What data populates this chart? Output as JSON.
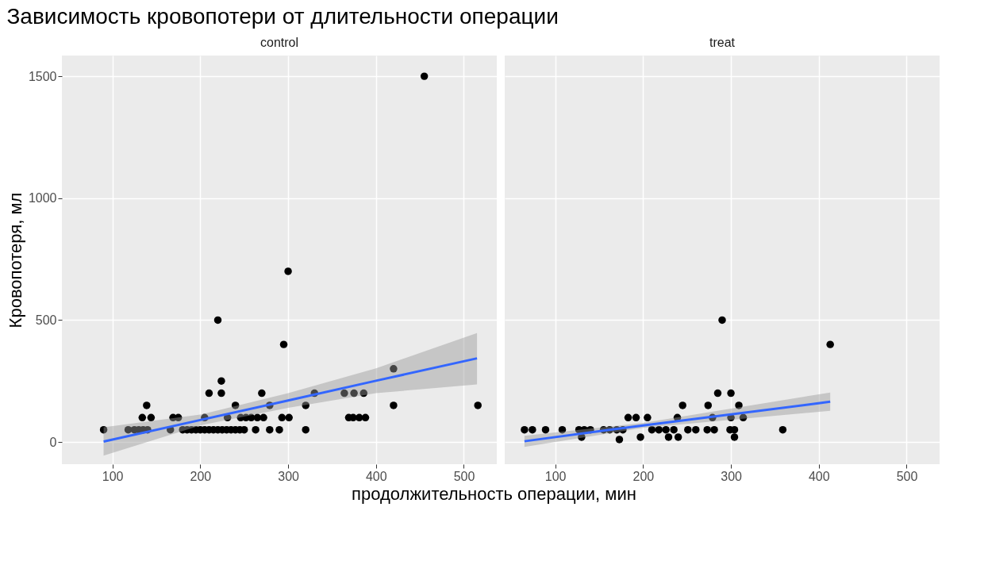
{
  "chart_data": [
    {
      "type": "scatter",
      "title": "Зависимость кровопотери от длительности операции",
      "subtitle": "control",
      "xlabel": "продолжительность операции, мин",
      "ylabel": "Кровопотеря, мл",
      "xlim": [
        42.5,
        537.5
      ],
      "ylim": [
        -91,
        1585
      ],
      "xticks": [
        100,
        200,
        300,
        400,
        500
      ],
      "yticks": [
        0,
        500,
        1000,
        1500
      ],
      "grid": true,
      "series": [
        {
          "type": "scatter",
          "marker": "circle",
          "color": "#000000",
          "x": [
            90,
            118,
            125,
            130,
            135,
            140,
            134,
            144,
            139,
            166,
            169,
            175,
            180,
            185,
            190,
            195,
            200,
            205,
            210,
            215,
            205,
            210,
            220,
            224,
            224,
            220,
            225,
            230,
            235,
            240,
            245,
            250,
            240,
            231,
            246,
            252,
            258,
            265,
            272,
            263,
            270,
            279,
            290,
            279,
            295,
            300,
            293,
            301,
            320,
            320,
            330,
            364,
            369,
            375,
            386,
            374,
            381,
            388,
            420,
            420,
            455,
            516
          ],
          "values": [
            50,
            50,
            50,
            50,
            50,
            50,
            100,
            100,
            150,
            50,
            100,
            100,
            50,
            50,
            50,
            50,
            50,
            100,
            200,
            50,
            50,
            50,
            500,
            250,
            200,
            50,
            50,
            50,
            50,
            50,
            50,
            50,
            150,
            100,
            100,
            100,
            100,
            100,
            100,
            50,
            200,
            50,
            50,
            150,
            400,
            700,
            100,
            100,
            150,
            50,
            200,
            200,
            100,
            200,
            200,
            100,
            100,
            100,
            300,
            150,
            1500,
            150
          ]
        },
        {
          "type": "line",
          "color": "#3366ff",
          "x": [
            90,
            200,
            300,
            400,
            515
          ],
          "values": [
            2,
            90,
            170,
            251,
            343
          ],
          "lower": [
            -56,
            68,
            140,
            200,
            236
          ],
          "upper": [
            60,
            112,
            200,
            302,
            447
          ]
        }
      ]
    },
    {
      "type": "scatter",
      "subtitle": "treat",
      "xlim": [
        42.5,
        537.5
      ],
      "ylim": [
        -91,
        1585
      ],
      "xticks": [
        100,
        200,
        300,
        400,
        500
      ],
      "yticks": [
        0,
        500,
        1000,
        1500
      ],
      "grid": true,
      "tick_labels": "x",
      "series": [
        {
          "type": "scatter",
          "marker": "circle",
          "color": "#000000",
          "x": [
            65,
            74,
            89,
            108,
            127,
            133,
            140,
            130,
            155,
            162,
            170,
            177,
            173,
            183,
            192,
            205,
            197,
            210,
            218,
            226,
            235,
            229,
            240,
            239,
            245,
            251,
            260,
            273,
            281,
            274,
            279,
            285,
            290,
            300,
            300,
            299,
            304,
            304,
            309,
            314,
            359,
            413
          ],
          "values": [
            50,
            50,
            50,
            50,
            50,
            50,
            50,
            20,
            50,
            50,
            50,
            50,
            10,
            100,
            100,
            100,
            20,
            50,
            50,
            50,
            50,
            20,
            20,
            100,
            150,
            50,
            50,
            50,
            50,
            150,
            100,
            200,
            500,
            200,
            100,
            50,
            50,
            20,
            150,
            100,
            50,
            400
          ]
        },
        {
          "type": "line",
          "color": "#3366ff",
          "x": [
            65,
            200,
            413
          ],
          "values": [
            3,
            68,
            165
          ],
          "lower": [
            -20,
            58,
            128
          ],
          "upper": [
            25,
            78,
            203
          ]
        }
      ]
    }
  ]
}
